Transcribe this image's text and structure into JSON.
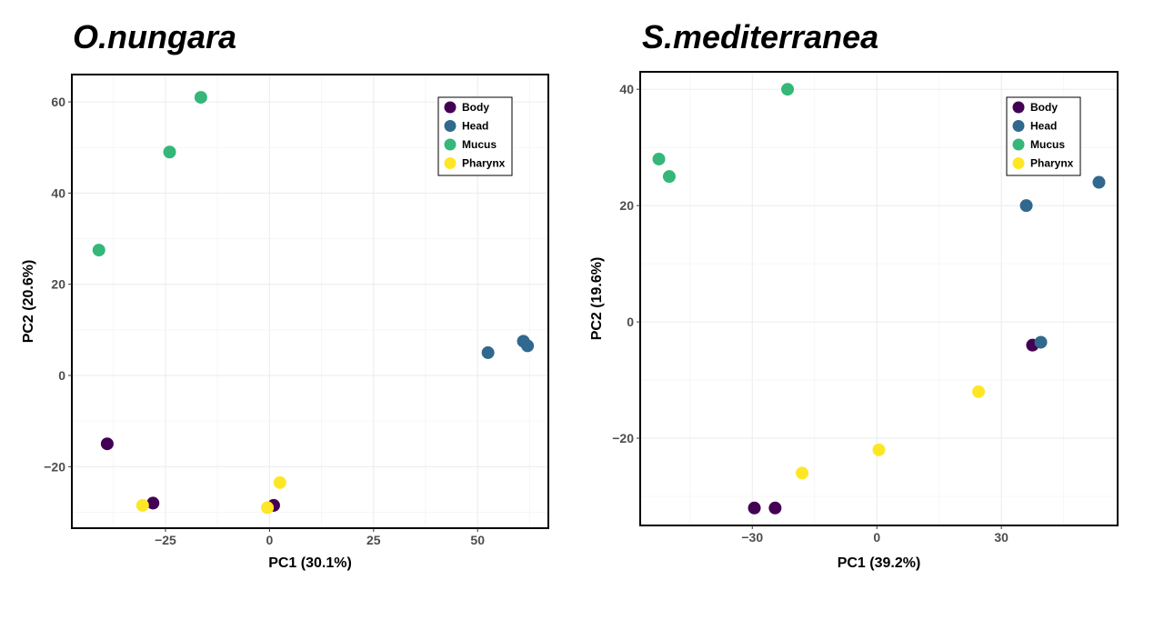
{
  "chart_data": [
    {
      "type": "scatter",
      "title": "O.nungara",
      "xlabel": "PC1 (30.1%)",
      "ylabel": "PC2 (20.6%)",
      "xlim": [
        -47.5,
        67
      ],
      "ylim": [
        -33.5,
        66
      ],
      "xticks": [
        -25,
        0,
        25,
        50
      ],
      "xtick_labels": [
        "−25",
        "0",
        "25",
        "50"
      ],
      "yticks": [
        -20,
        0,
        20,
        40,
        60
      ],
      "ytick_labels": [
        "−20",
        "0",
        "20",
        "40",
        "60"
      ],
      "grid": true,
      "legend_position": "top-right",
      "series": [
        {
          "name": "Body",
          "color": "#440154",
          "points": [
            [
              -39,
              -15
            ],
            [
              -28,
              -28
            ],
            [
              1,
              -28.5
            ]
          ]
        },
        {
          "name": "Head",
          "color": "#31688e",
          "points": [
            [
              52.5,
              5
            ],
            [
              61,
              7.5
            ],
            [
              62,
              6.5
            ]
          ]
        },
        {
          "name": "Mucus",
          "color": "#35b779",
          "points": [
            [
              -41,
              27.5
            ],
            [
              -24,
              49
            ],
            [
              -16.5,
              61
            ]
          ]
        },
        {
          "name": "Pharynx",
          "color": "#fde725",
          "points": [
            [
              -30.5,
              -28.5
            ],
            [
              -0.5,
              -29
            ],
            [
              2.5,
              -23.5
            ]
          ]
        }
      ]
    },
    {
      "type": "scatter",
      "title": "S.mediterranea",
      "xlabel": "PC1 (39.2%)",
      "ylabel": "PC2 (19.6%)",
      "xlim": [
        -57,
        58
      ],
      "ylim": [
        -35,
        43
      ],
      "xticks": [
        -30,
        0,
        30
      ],
      "xtick_labels": [
        "−30",
        "0",
        "30"
      ],
      "yticks": [
        -20,
        0,
        20,
        40
      ],
      "ytick_labels": [
        "−20",
        "0",
        "20",
        "40"
      ],
      "grid": true,
      "legend_position": "top-right",
      "series": [
        {
          "name": "Body",
          "color": "#440154",
          "points": [
            [
              -29.5,
              -32
            ],
            [
              -24.5,
              -32
            ],
            [
              37.5,
              -4
            ]
          ]
        },
        {
          "name": "Head",
          "color": "#31688e",
          "points": [
            [
              36,
              20
            ],
            [
              39.5,
              -3.5
            ],
            [
              53.5,
              24
            ]
          ]
        },
        {
          "name": "Mucus",
          "color": "#35b779",
          "points": [
            [
              -52.5,
              28
            ],
            [
              -50,
              25
            ],
            [
              -21.5,
              40
            ]
          ]
        },
        {
          "name": "Pharynx",
          "color": "#fde725",
          "points": [
            [
              -18,
              -26
            ],
            [
              0.5,
              -22
            ],
            [
              24.5,
              -12
            ]
          ]
        }
      ]
    }
  ]
}
